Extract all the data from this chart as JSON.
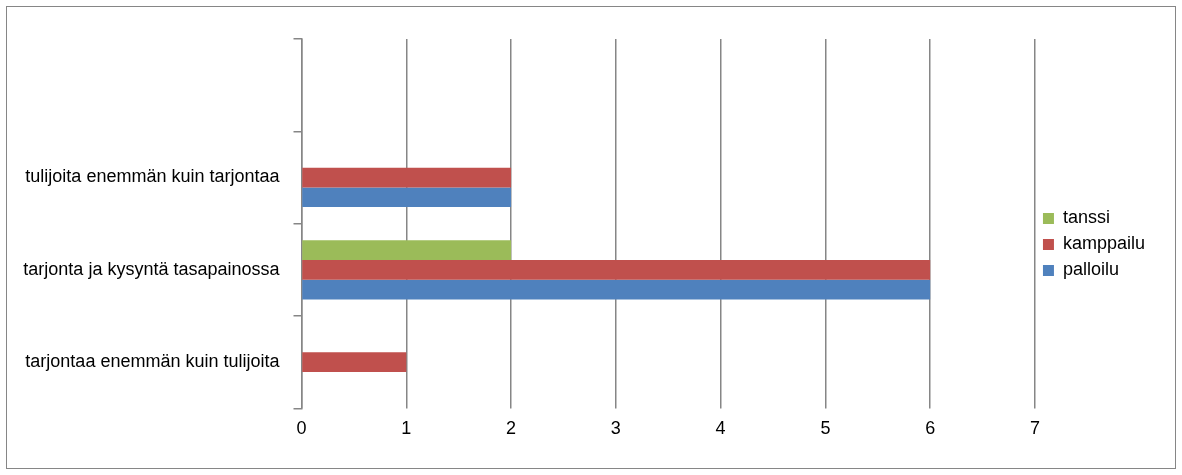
{
  "chart_data": {
    "type": "bar",
    "orientation": "horizontal",
    "categories": [
      null,
      "tulijoita enemmän kuin tarjontaa",
      "tarjonta ja kysyntä tasapainossa",
      "tarjontaa enemmän kuin tulijoita"
    ],
    "series": [
      {
        "name": "tanssi",
        "color": "#9bbb59",
        "values": [
          null,
          null,
          2,
          null
        ]
      },
      {
        "name": "kamppailu",
        "color": "#c0504d",
        "values": [
          null,
          2,
          6,
          1
        ]
      },
      {
        "name": "palloilu",
        "color": "#4f81bd",
        "values": [
          null,
          2,
          6,
          null
        ]
      }
    ],
    "xlim": [
      0,
      7
    ],
    "xticks": [
      0,
      1,
      2,
      3,
      4,
      5,
      6,
      7
    ],
    "grid": "x",
    "legend": "right"
  }
}
